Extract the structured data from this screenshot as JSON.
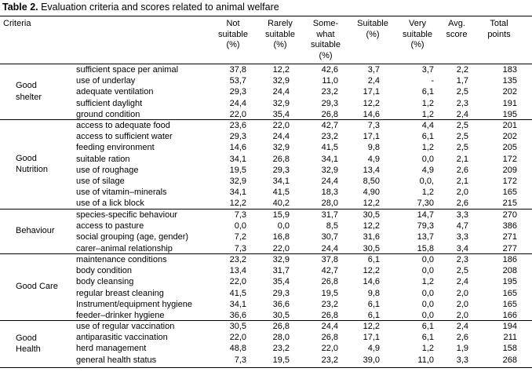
{
  "title": {
    "prefix": "Table 2.",
    "text": " Evaluation criteria and scores related to animal welfare"
  },
  "headers": {
    "criteria": "Criteria",
    "not_suitable": [
      "Not",
      "suitable",
      "(%)"
    ],
    "rarely_suitable": [
      "Rarely",
      "suitable",
      "(%)"
    ],
    "somewhat_suitable": [
      "Some-",
      "what",
      "suitable",
      "(%)"
    ],
    "suitable": [
      "Suitable",
      "(%)"
    ],
    "very_suitable": [
      "Very",
      "suitable",
      "(%)"
    ],
    "avg_score": [
      "Avg.",
      "score"
    ],
    "total_points": [
      "Total",
      "points"
    ]
  },
  "groups": [
    {
      "name": [
        "Good",
        "shelter"
      ],
      "rows": [
        {
          "label": "sufficient space per animal",
          "v": [
            "37,8",
            "12,2",
            "42,6",
            "3,7",
            "3,7",
            "2,2",
            "183"
          ]
        },
        {
          "label": "use of underlay",
          "v": [
            "53,7",
            "32,9",
            "11,0",
            "2,4",
            "-",
            "1,7",
            "135"
          ]
        },
        {
          "label": "adequate ventilation",
          "v": [
            "29,3",
            "24,4",
            "23,2",
            "17,1",
            "6,1",
            "2,5",
            "202"
          ]
        },
        {
          "label": "sufficient daylight",
          "v": [
            "24,4",
            "32,9",
            "29,3",
            "12,2",
            "1,2",
            "2,3",
            "191"
          ]
        },
        {
          "label": "ground condition",
          "v": [
            "22,0",
            "35,4",
            "26,8",
            "14,6",
            "1,2",
            "2,4",
            "195"
          ]
        }
      ]
    },
    {
      "name": [
        "Good",
        "Nutrition"
      ],
      "rows": [
        {
          "label": "access to adequate food",
          "v": [
            "23,6",
            "22,0",
            "42,7",
            "7,3",
            "4,4",
            "2,5",
            "201"
          ]
        },
        {
          "label": "access to sufficient water",
          "v": [
            "29,3",
            "24,4",
            "23,2",
            "17,1",
            "6,1",
            "2,5",
            "202"
          ]
        },
        {
          "label": "feeding environment",
          "v": [
            "14,6",
            "32,9",
            "41,5",
            "9,8",
            "1,2",
            "2,5",
            "205"
          ]
        },
        {
          "label": "suitable ration",
          "v": [
            "34,1",
            "26,8",
            "34,1",
            "4,9",
            "0,0",
            "2,1",
            "172"
          ]
        },
        {
          "label": "use of roughage",
          "v": [
            "19,5",
            "29,3",
            "32,9",
            "13,4",
            "4,9",
            "2,6",
            "209"
          ]
        },
        {
          "label": "use of silage",
          "v": [
            "32,9",
            "34,1",
            "24,4",
            "8,50",
            "0,0,",
            "2,1",
            "172"
          ]
        },
        {
          "label": "use of vitamin–minerals",
          "v": [
            "34,1",
            "41,5",
            "18,3",
            "4,90",
            "1,2",
            "2,0",
            "165"
          ]
        },
        {
          "label": "use of a lick block",
          "v": [
            "12,2",
            "40,2",
            "28,0",
            "12,2",
            "7,30",
            "2,6",
            "215"
          ]
        }
      ]
    },
    {
      "name": [
        "Behaviour"
      ],
      "rows": [
        {
          "label": "species-specific behaviour",
          "v": [
            "7,3",
            "15,9",
            "31,7",
            "30,5",
            "14,7",
            "3,3",
            "270"
          ]
        },
        {
          "label": "access to pasture",
          "v": [
            "0,0",
            "0,0",
            "8,5",
            "12,2",
            "79,3",
            "4,7",
            "386"
          ]
        },
        {
          "label": "social grouping (age, gender)",
          "v": [
            "7,2",
            "16,8",
            "30,7",
            "31,6",
            "13,7",
            "3,3",
            "271"
          ]
        },
        {
          "label": "carer–animal relationship",
          "v": [
            "7,3",
            "22,0",
            "24,4",
            "30,5",
            "15,8",
            "3,4",
            "277"
          ]
        }
      ]
    },
    {
      "name": [
        "Good Care"
      ],
      "rows": [
        {
          "label": "maintenance conditions",
          "v": [
            "23,2",
            "32,9",
            "37,8",
            "6,1",
            "0,0",
            "2,3",
            "186"
          ]
        },
        {
          "label": "body condition",
          "v": [
            "13,4",
            "31,7",
            "42,7",
            "12,2",
            "0,0",
            "2,5",
            "208"
          ]
        },
        {
          "label": "body cleansing",
          "v": [
            "22,0",
            "35,4",
            "26,8",
            "14,6",
            "1,2",
            "2,4",
            "195"
          ]
        },
        {
          "label": "regular breast cleaning",
          "v": [
            "41,5",
            "29,3",
            "19,5",
            "9,8",
            "0,0",
            "2,0",
            "165"
          ]
        },
        {
          "label": "Instrument/equipment hygiene",
          "v": [
            "34,1",
            "36,6",
            "23,2",
            "6,1",
            "0,0",
            "2,0",
            "165"
          ]
        },
        {
          "label": "feeder–drinker hygiene",
          "v": [
            "36,6",
            "30,5",
            "26,8",
            "6,1",
            "0,0",
            "2,0",
            "166"
          ]
        }
      ]
    },
    {
      "name": [
        "Good",
        "Health"
      ],
      "rows": [
        {
          "label": "use of regular vaccination",
          "v": [
            "30,5",
            "26,8",
            "24,4",
            "12,2",
            "6,1",
            "2,4",
            "194"
          ]
        },
        {
          "label": "antiparasitic vaccination",
          "v": [
            "22,0",
            "28,0",
            "26,8",
            "17,1",
            "6,1",
            "2,6",
            "211"
          ]
        },
        {
          "label": "herd management",
          "v": [
            "48,8",
            "23,2",
            "22,0",
            "4,9",
            "1,2",
            "1,9",
            "158"
          ]
        },
        {
          "label": "general health status",
          "v": [
            "7,3",
            "19,5",
            "23,2",
            "39,0",
            "11,0",
            "3,3",
            "268"
          ]
        }
      ]
    }
  ]
}
